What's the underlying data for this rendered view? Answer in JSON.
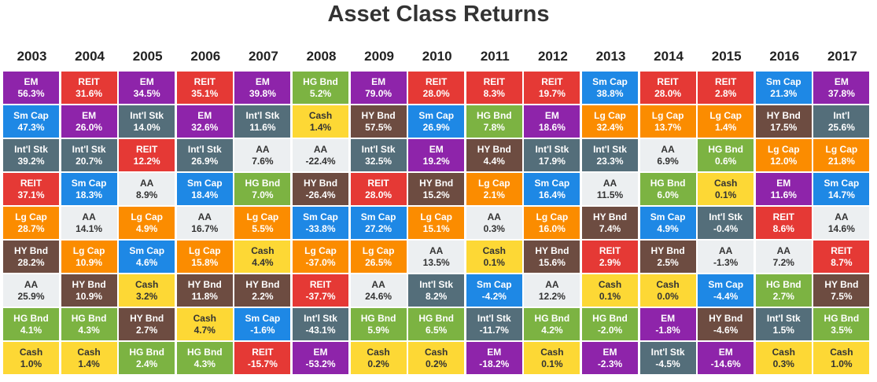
{
  "title": "Asset Class Returns",
  "colors": {
    "EM": "#8e24aa",
    "REIT": "#e53935",
    "Sm Cap": "#1e88e5",
    "Int'l Stk": "#546e7a",
    "Int'l": "#546e7a",
    "Lg Cap": "#fb8c00",
    "HY Bnd": "#6d4c41",
    "AA": "#eceff1",
    "HG Bnd": "#7cb342",
    "Cash": "#fdd835"
  },
  "light_classes": [
    "AA",
    "Cash"
  ],
  "chart_data": {
    "type": "table",
    "title": "Asset Class Returns",
    "years": [
      "2003",
      "2004",
      "2005",
      "2006",
      "2007",
      "2008",
      "2009",
      "2010",
      "2011",
      "2012",
      "2013",
      "2014",
      "2015",
      "2016",
      "2017"
    ],
    "columns": [
      [
        [
          "EM",
          "56.3%"
        ],
        [
          "Sm Cap",
          "47.3%"
        ],
        [
          "Int'l Stk",
          "39.2%"
        ],
        [
          "REIT",
          "37.1%"
        ],
        [
          "Lg Cap",
          "28.7%"
        ],
        [
          "HY Bnd",
          "28.2%"
        ],
        [
          "AA",
          "25.9%"
        ],
        [
          "HG Bnd",
          "4.1%"
        ],
        [
          "Cash",
          "1.0%"
        ]
      ],
      [
        [
          "REIT",
          "31.6%"
        ],
        [
          "EM",
          "26.0%"
        ],
        [
          "Int'l Stk",
          "20.7%"
        ],
        [
          "Sm Cap",
          "18.3%"
        ],
        [
          "AA",
          "14.1%"
        ],
        [
          "Lg Cap",
          "10.9%"
        ],
        [
          "HY Bnd",
          "10.9%"
        ],
        [
          "HG Bnd",
          "4.3%"
        ],
        [
          "Cash",
          "1.4%"
        ]
      ],
      [
        [
          "EM",
          "34.5%"
        ],
        [
          "Int'l Stk",
          "14.0%"
        ],
        [
          "REIT",
          "12.2%"
        ],
        [
          "AA",
          "8.9%"
        ],
        [
          "Lg Cap",
          "4.9%"
        ],
        [
          "Sm Cap",
          "4.6%"
        ],
        [
          "Cash",
          "3.2%"
        ],
        [
          "HY Bnd",
          "2.7%"
        ],
        [
          "HG Bnd",
          "2.4%"
        ]
      ],
      [
        [
          "REIT",
          "35.1%"
        ],
        [
          "EM",
          "32.6%"
        ],
        [
          "Int'l Stk",
          "26.9%"
        ],
        [
          "Sm Cap",
          "18.4%"
        ],
        [
          "AA",
          "16.7%"
        ],
        [
          "Lg Cap",
          "15.8%"
        ],
        [
          "HY Bnd",
          "11.8%"
        ],
        [
          "Cash",
          "4.7%"
        ],
        [
          "HG Bnd",
          "4.3%"
        ]
      ],
      [
        [
          "EM",
          "39.8%"
        ],
        [
          "Int'l Stk",
          "11.6%"
        ],
        [
          "AA",
          "7.6%"
        ],
        [
          "HG Bnd",
          "7.0%"
        ],
        [
          "Lg Cap",
          "5.5%"
        ],
        [
          "Cash",
          "4.4%"
        ],
        [
          "HY Bnd",
          "2.2%"
        ],
        [
          "Sm Cap",
          "-1.6%"
        ],
        [
          "REIT",
          "-15.7%"
        ]
      ],
      [
        [
          "HG Bnd",
          "5.2%"
        ],
        [
          "Cash",
          "1.4%"
        ],
        [
          "AA",
          "-22.4%"
        ],
        [
          "HY Bnd",
          "-26.4%"
        ],
        [
          "Sm Cap",
          "-33.8%"
        ],
        [
          "Lg Cap",
          "-37.0%"
        ],
        [
          "REIT",
          "-37.7%"
        ],
        [
          "Int'l Stk",
          "-43.1%"
        ],
        [
          "EM",
          "-53.2%"
        ]
      ],
      [
        [
          "EM",
          "79.0%"
        ],
        [
          "HY Bnd",
          "57.5%"
        ],
        [
          "Int'l Stk",
          "32.5%"
        ],
        [
          "REIT",
          "28.0%"
        ],
        [
          "Sm Cap",
          "27.2%"
        ],
        [
          "Lg Cap",
          "26.5%"
        ],
        [
          "AA",
          "24.6%"
        ],
        [
          "HG Bnd",
          "5.9%"
        ],
        [
          "Cash",
          "0.2%"
        ]
      ],
      [
        [
          "REIT",
          "28.0%"
        ],
        [
          "Sm Cap",
          "26.9%"
        ],
        [
          "EM",
          "19.2%"
        ],
        [
          "HY Bnd",
          "15.2%"
        ],
        [
          "Lg Cap",
          "15.1%"
        ],
        [
          "AA",
          "13.5%"
        ],
        [
          "Int'l Stk",
          "8.2%"
        ],
        [
          "HG Bnd",
          "6.5%"
        ],
        [
          "Cash",
          "0.2%"
        ]
      ],
      [
        [
          "REIT",
          "8.3%"
        ],
        [
          "HG Bnd",
          "7.8%"
        ],
        [
          "HY Bnd",
          "4.4%"
        ],
        [
          "Lg Cap",
          "2.1%"
        ],
        [
          "AA",
          "0.3%"
        ],
        [
          "Cash",
          "0.1%"
        ],
        [
          "Sm Cap",
          "-4.2%"
        ],
        [
          "Int'l Stk",
          "-11.7%"
        ],
        [
          "EM",
          "-18.2%"
        ]
      ],
      [
        [
          "REIT",
          "19.7%"
        ],
        [
          "EM",
          "18.6%"
        ],
        [
          "Int'l Stk",
          "17.9%"
        ],
        [
          "Sm Cap",
          "16.4%"
        ],
        [
          "Lg Cap",
          "16.0%"
        ],
        [
          "HY Bnd",
          "15.6%"
        ],
        [
          "AA",
          "12.2%"
        ],
        [
          "HG Bnd",
          "4.2%"
        ],
        [
          "Cash",
          "0.1%"
        ]
      ],
      [
        [
          "Sm Cap",
          "38.8%"
        ],
        [
          "Lg Cap",
          "32.4%"
        ],
        [
          "Int'l Stk",
          "23.3%"
        ],
        [
          "AA",
          "11.5%"
        ],
        [
          "HY Bnd",
          "7.4%"
        ],
        [
          "REIT",
          "2.9%"
        ],
        [
          "Cash",
          "0.1%"
        ],
        [
          "HG Bnd",
          "-2.0%"
        ],
        [
          "EM",
          "-2.3%"
        ]
      ],
      [
        [
          "REIT",
          "28.0%"
        ],
        [
          "Lg Cap",
          "13.7%"
        ],
        [
          "AA",
          "6.9%"
        ],
        [
          "HG Bnd",
          "6.0%"
        ],
        [
          "Sm Cap",
          "4.9%"
        ],
        [
          "HY Bnd",
          "2.5%"
        ],
        [
          "Cash",
          "0.0%"
        ],
        [
          "EM",
          "-1.8%"
        ],
        [
          "Int'l Stk",
          "-4.5%"
        ]
      ],
      [
        [
          "REIT",
          "2.8%"
        ],
        [
          "Lg Cap",
          "1.4%"
        ],
        [
          "HG Bnd",
          "0.6%"
        ],
        [
          "Cash",
          "0.1%"
        ],
        [
          "Int'l Stk",
          "-0.4%"
        ],
        [
          "AA",
          "-1.3%"
        ],
        [
          "Sm Cap",
          "-4.4%"
        ],
        [
          "HY Bnd",
          "-4.6%"
        ],
        [
          "EM",
          "-14.6%"
        ]
      ],
      [
        [
          "Sm Cap",
          "21.3%"
        ],
        [
          "HY Bnd",
          "17.5%"
        ],
        [
          "Lg Cap",
          "12.0%"
        ],
        [
          "EM",
          "11.6%"
        ],
        [
          "REIT",
          "8.6%"
        ],
        [
          "AA",
          "7.2%"
        ],
        [
          "HG Bnd",
          "2.7%"
        ],
        [
          "Int'l Stk",
          "1.5%"
        ],
        [
          "Cash",
          "0.3%"
        ]
      ],
      [
        [
          "EM",
          "37.8%"
        ],
        [
          "Int'l",
          "25.6%"
        ],
        [
          "Lg Cap",
          "21.8%"
        ],
        [
          "Sm Cap",
          "14.7%"
        ],
        [
          "AA",
          "14.6%"
        ],
        [
          "REIT",
          "8.7%"
        ],
        [
          "HY Bnd",
          "7.5%"
        ],
        [
          "HG Bnd",
          "3.5%"
        ],
        [
          "Cash",
          "1.0%"
        ]
      ]
    ]
  }
}
